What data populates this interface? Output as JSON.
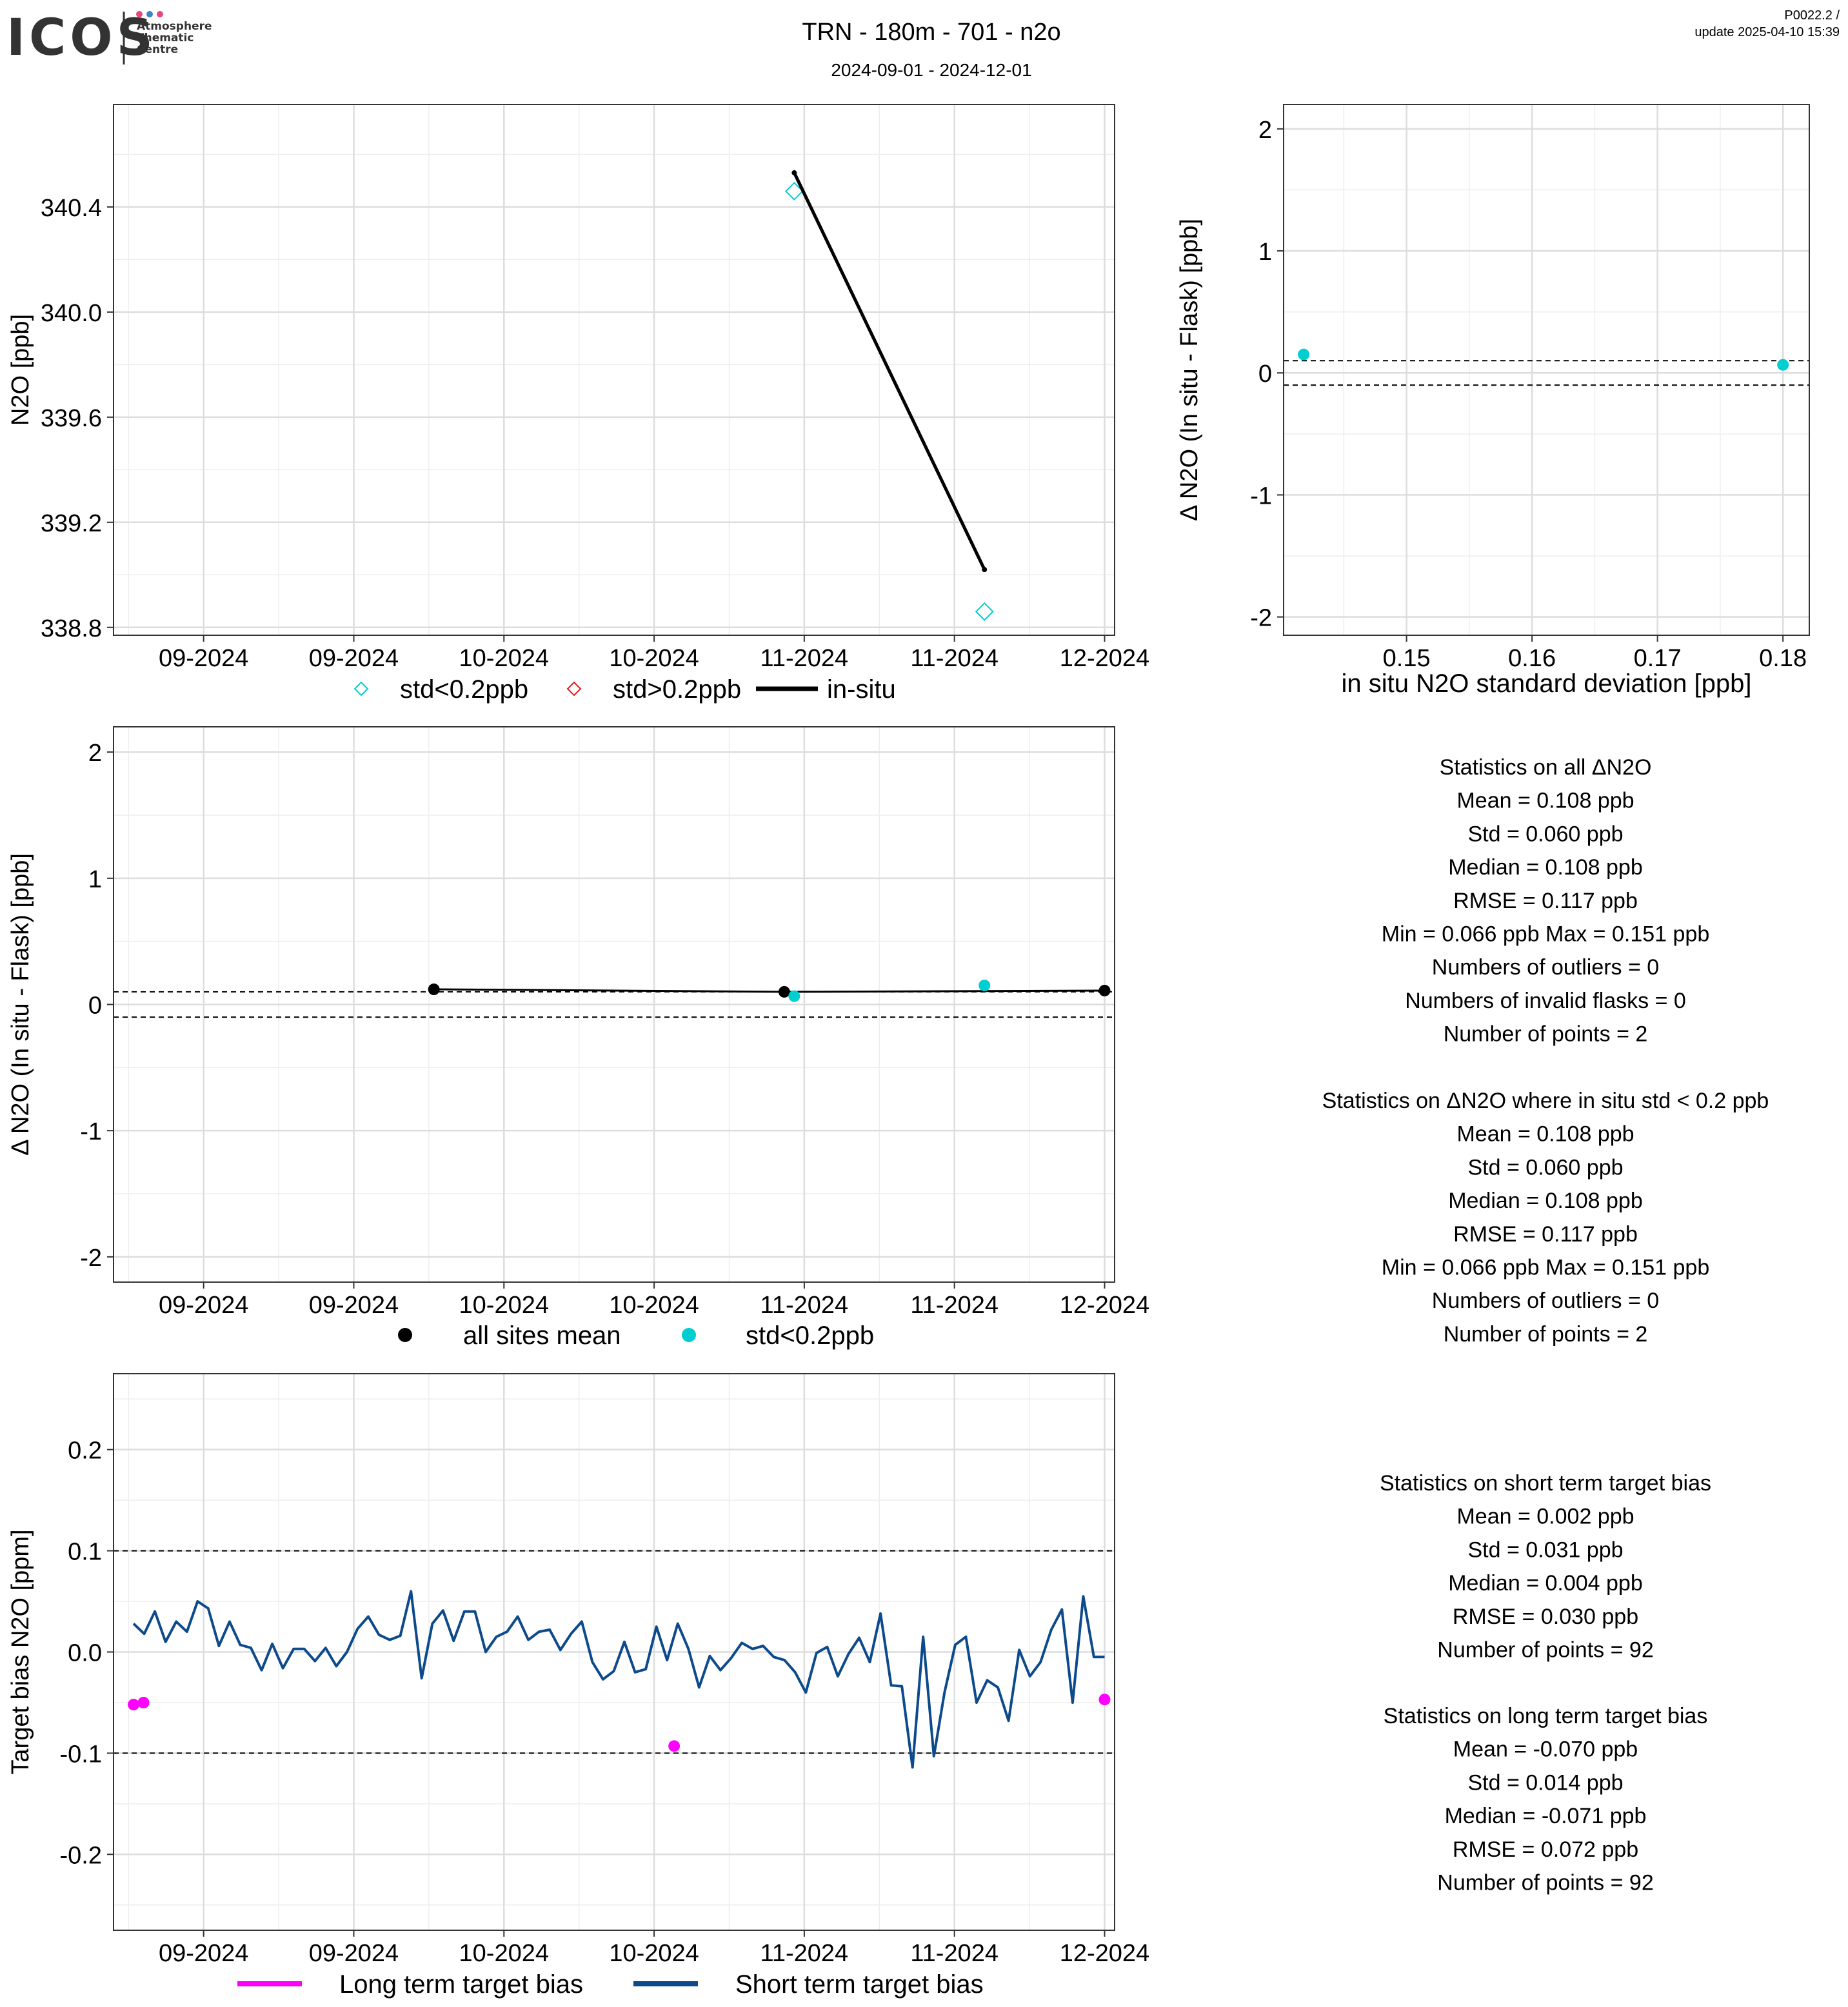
{
  "header": {
    "logo_word": "ICOS",
    "logo_sub": [
      "Atmosphere",
      "Thematic",
      "Centre"
    ],
    "logo_dot_colors": [
      "#e8467c",
      "#3a86c8",
      "#e8467c"
    ],
    "title": "TRN - 180m - 701 - n2o",
    "subtitle": "2024-09-01 - 2024-12-01",
    "version": "P0022.2 /",
    "update": "update  2025-04-10 15:39"
  },
  "colors": {
    "cyan": "#00CED1",
    "red": "#E31A1C",
    "black": "#000000",
    "magenta": "#FF00FF",
    "navy": "#0D4A8C",
    "grid": "#DDDDDD",
    "grid_minor": "#EEEEEE"
  },
  "chart_data": [
    {
      "id": "timeseries",
      "type": "scatter",
      "ylabel": "N2O [ppb]",
      "xlabel": "",
      "x_tick_labels": [
        "09-2024",
        "09-2024",
        "10-2024",
        "10-2024",
        "11-2024",
        "11-2024",
        "12-2024"
      ],
      "x_tick_dates": [
        "2024-09-01",
        "2024-09-16",
        "2024-10-01",
        "2024-10-16",
        "2024-10-31",
        "2024-11-15",
        "2024-11-30"
      ],
      "xlim": [
        "2024-08-23",
        "2024-12-01"
      ],
      "ylim": [
        338.77,
        340.79
      ],
      "y_ticks": [
        338.8,
        339.2,
        339.6,
        340.0,
        340.4
      ],
      "y_tick_labels": [
        "338.8",
        "339.2",
        "339.6",
        "340.0",
        "340.4"
      ],
      "series": [
        {
          "name": "std<0.2ppb",
          "kind": "diamond",
          "color": "cyan",
          "points": [
            [
              "2024-10-30",
              340.46
            ],
            [
              "2024-11-18",
              338.86
            ]
          ]
        },
        {
          "name": "std>0.2ppb",
          "kind": "diamond",
          "color": "red",
          "points": []
        },
        {
          "name": "in-situ",
          "kind": "line",
          "color": "black",
          "points": [
            [
              "2024-10-30",
              340.53
            ],
            [
              "2024-11-18",
              339.02
            ]
          ]
        }
      ],
      "legend": [
        "std<0.2ppb",
        "std>0.2ppb",
        "in-situ"
      ]
    },
    {
      "id": "scatter_std",
      "type": "scatter",
      "ylabel": "Δ N2O (In situ - Flask) [ppb]",
      "xlabel": "in situ N2O standard deviation [ppb]",
      "xlim": [
        0.1402,
        0.1821
      ],
      "ylim": [
        -2.15,
        2.2
      ],
      "x_ticks": [
        0.15,
        0.16,
        0.17,
        0.18
      ],
      "x_tick_labels": [
        "0.15",
        "0.16",
        "0.17",
        "0.18"
      ],
      "y_ticks": [
        -2,
        -1,
        0,
        1,
        2
      ],
      "y_tick_labels": [
        "-2",
        "-1",
        "0",
        "1",
        "2"
      ],
      "hlines": [
        0.1,
        -0.1
      ],
      "series": [
        {
          "name": "std<0.2ppb",
          "color": "cyan",
          "points": [
            [
              0.1418,
              0.151
            ],
            [
              0.18,
              0.066
            ]
          ]
        }
      ]
    },
    {
      "id": "delta_time",
      "type": "scatter",
      "ylabel": "Δ N2O (In situ - Flask) [ppb]",
      "xlabel": "",
      "x_tick_labels": [
        "09-2024",
        "09-2024",
        "10-2024",
        "10-2024",
        "11-2024",
        "11-2024",
        "12-2024"
      ],
      "x_tick_dates": [
        "2024-09-01",
        "2024-09-16",
        "2024-10-01",
        "2024-10-16",
        "2024-10-31",
        "2024-11-15",
        "2024-11-30"
      ],
      "xlim": [
        "2024-08-23",
        "2024-12-01"
      ],
      "ylim": [
        -2.2,
        2.2
      ],
      "y_ticks": [
        -2,
        -1,
        0,
        1,
        2
      ],
      "y_tick_labels": [
        "-2",
        "-1",
        "0",
        "1",
        "2"
      ],
      "hlines": [
        0.1,
        -0.1
      ],
      "series": [
        {
          "name": "all sites mean",
          "color": "black",
          "line": true,
          "points": [
            [
              "2024-09-24",
              0.12
            ],
            [
              "2024-10-29",
              0.1
            ],
            [
              "2024-11-30",
              0.11
            ]
          ]
        },
        {
          "name": "std<0.2ppb",
          "color": "cyan",
          "points": [
            [
              "2024-10-30",
              0.066
            ],
            [
              "2024-11-18",
              0.151
            ]
          ]
        }
      ],
      "legend": [
        "all sites mean",
        "std<0.2ppb"
      ]
    },
    {
      "id": "target_bias",
      "type": "line",
      "ylabel": "Target bias N2O [ppm]",
      "xlabel": "",
      "x_tick_labels": [
        "09-2024",
        "09-2024",
        "10-2024",
        "10-2024",
        "11-2024",
        "11-2024",
        "12-2024"
      ],
      "x_tick_dates": [
        "2024-09-01",
        "2024-09-16",
        "2024-10-01",
        "2024-10-16",
        "2024-10-31",
        "2024-11-15",
        "2024-11-30"
      ],
      "xlim": [
        "2024-08-23",
        "2024-12-01"
      ],
      "ylim": [
        -0.275,
        0.275
      ],
      "y_ticks": [
        -0.2,
        -0.1,
        0.0,
        0.1,
        0.2
      ],
      "y_tick_labels": [
        "-0.2",
        "-0.1",
        "0.0",
        "0.1",
        "0.2"
      ],
      "hlines": [
        0.1,
        -0.1
      ],
      "x_start": "2024-08-25",
      "x_end": "2024-11-30",
      "series": [
        {
          "name": "Long term target bias",
          "color": "magenta",
          "points": [
            [
              "2024-08-25",
              -0.052
            ],
            [
              "2024-08-26",
              -0.05
            ],
            [
              "2024-10-18",
              -0.093
            ],
            [
              "2024-11-30",
              -0.047
            ]
          ]
        },
        {
          "name": "Short term target bias",
          "color": "navy",
          "values": [
            0.028,
            0.018,
            0.04,
            0.01,
            0.03,
            0.02,
            0.05,
            0.043,
            0.006,
            0.03,
            0.007,
            0.004,
            -0.018,
            0.008,
            -0.016,
            0.003,
            0.003,
            -0.009,
            0.004,
            -0.014,
            0.0,
            0.023,
            0.035,
            0.017,
            0.012,
            0.016,
            0.06,
            -0.026,
            0.028,
            0.041,
            0.011,
            0.04,
            0.04,
            0.0,
            0.015,
            0.02,
            0.035,
            0.012,
            0.02,
            0.022,
            0.002,
            0.018,
            0.03,
            -0.01,
            -0.027,
            -0.019,
            0.01,
            -0.02,
            -0.017,
            0.025,
            -0.008,
            0.028,
            0.003,
            -0.035,
            -0.004,
            -0.018,
            -0.006,
            0.009,
            0.003,
            0.006,
            -0.005,
            -0.008,
            -0.02,
            -0.04,
            -0.001,
            0.005,
            -0.024,
            -0.002,
            0.014,
            -0.01,
            0.038,
            -0.033,
            -0.034,
            -0.114,
            0.015,
            -0.103,
            -0.04,
            0.007,
            0.015,
            -0.05,
            -0.028,
            -0.035,
            -0.068,
            0.002,
            -0.024,
            -0.01,
            0.022,
            0.042,
            -0.05,
            0.055,
            -0.005,
            -0.005
          ]
        }
      ],
      "legend": [
        "Long term target bias",
        "Short term target bias"
      ]
    }
  ],
  "stats_flask": {
    "all": [
      "Statistics on all ΔN2O",
      "Mean =  0.108 ppb",
      "Std =  0.060 ppb",
      "Median =  0.108 ppb",
      "RMSE =  0.117 ppb",
      "Min =  0.066 ppb Max =  0.151 ppb",
      "Numbers of outliers =  0",
      "Numbers of invalid flasks =  0",
      "Number of points =  2"
    ],
    "filtered": [
      "Statistics on ΔN2O where in situ std < 0.2 ppb",
      "Mean =  0.108 ppb",
      "Std =  0.060 ppb",
      "Median =  0.108 ppb",
      "RMSE =  0.117 ppb",
      "Min =  0.066 ppb Max =  0.151 ppb",
      "Numbers of outliers =  0",
      "Number of points =  2"
    ]
  },
  "stats_target": {
    "short": [
      "Statistics on short term target bias",
      "Mean =  0.002 ppb",
      "Std =  0.031 ppb",
      "Median =  0.004 ppb",
      "RMSE =  0.030 ppb",
      "Number of points =  92"
    ],
    "long": [
      "Statistics on long term target bias",
      "Mean =  -0.070 ppb",
      "Std =  0.014 ppb",
      "Median =  -0.071 ppb",
      "RMSE =  0.072 ppb",
      "Number of points =  92"
    ]
  }
}
